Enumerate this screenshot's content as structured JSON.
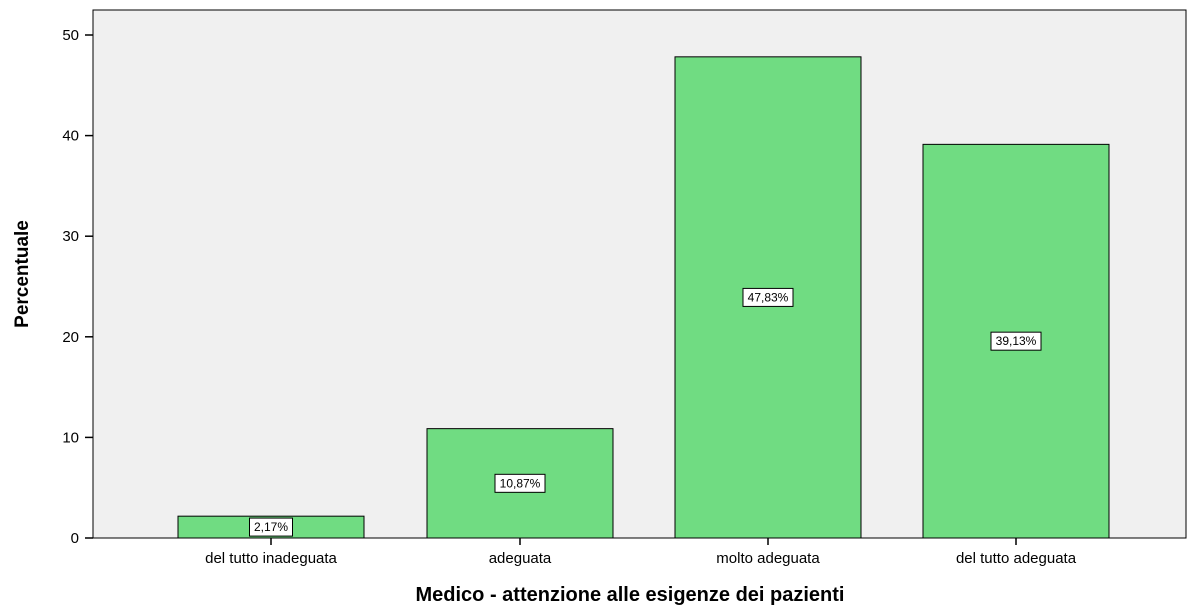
{
  "chart_data": {
    "type": "bar",
    "title": "",
    "xlabel": "Medico - attenzione alle esigenze dei pazienti",
    "ylabel": "Percentuale",
    "categories": [
      "del tutto inadeguata",
      "adeguata",
      "molto adeguata",
      "del tutto adeguata"
    ],
    "values": [
      2.17,
      10.87,
      47.83,
      39.13
    ],
    "data_labels": [
      "2,17%",
      "10,87%",
      "47,83%",
      "39,13%"
    ],
    "ylim": [
      0,
      52
    ],
    "yticks": [
      0,
      10,
      20,
      30,
      40,
      50
    ],
    "ytick_labels": [
      "0",
      "10",
      "20",
      "30",
      "40",
      "50"
    ],
    "grid": false,
    "legend": "none",
    "colors": {
      "bar": "#70dc82",
      "plot_background": "#f0f0f0",
      "bar_outline": "#000000"
    }
  }
}
